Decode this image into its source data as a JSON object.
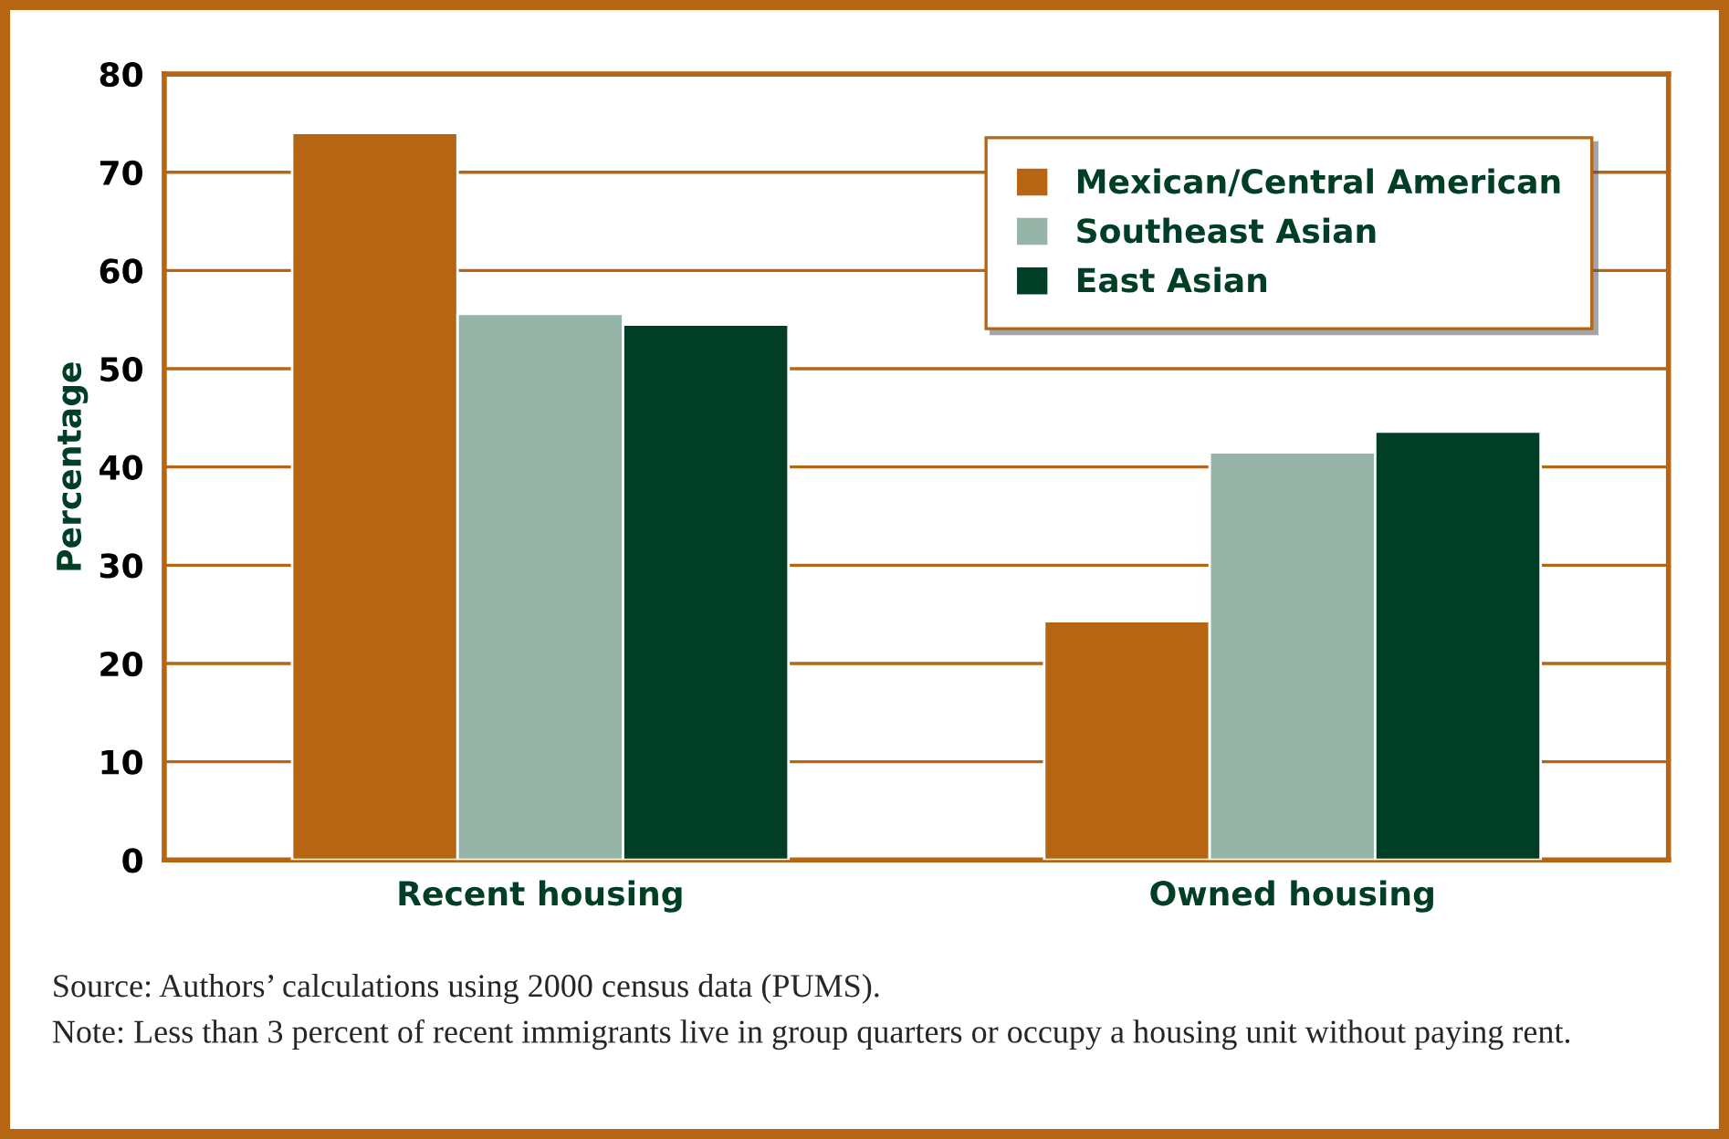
{
  "chart_data": {
    "type": "bar",
    "ylabel": "Percentage",
    "categories": [
      "Recent housing",
      "Owned housing"
    ],
    "series": [
      {
        "name": "Mexican/Central American",
        "color": "#b66513",
        "values": [
          74,
          24.3
        ]
      },
      {
        "name": "Southeast Asian",
        "color": "#96b5a8",
        "values": [
          55.6,
          41.5
        ]
      },
      {
        "name": "East Asian",
        "color": "#003f26",
        "values": [
          54.5,
          43.6
        ]
      }
    ],
    "ylim": [
      0,
      80
    ],
    "yticks": [
      0,
      10,
      20,
      30,
      40,
      50,
      60,
      70,
      80
    ],
    "grid": "y",
    "legend": "top right",
    "annotations": [
      "Source: Authors’ calculations using 2000 census data (PUMS).",
      "Note: Less than 3 percent of recent immigrants live in group quarters or occupy a housing unit without paying rent."
    ]
  }
}
